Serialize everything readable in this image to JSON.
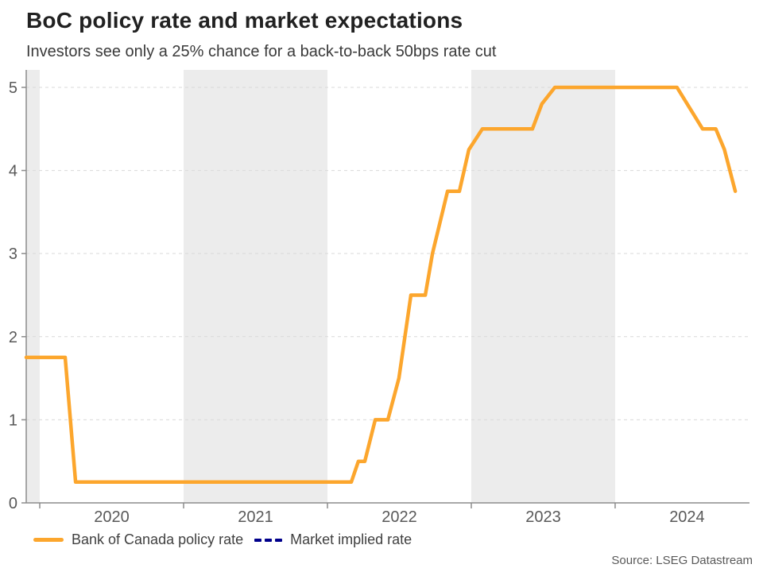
{
  "colors": {
    "band": "#ececec",
    "grid": "#d9d9d9",
    "axis": "#8c8c8c",
    "tick_text": "#595959",
    "title_text": "#212121",
    "subtitle_text": "#3a3a3a",
    "legend_text": "#404040",
    "policy_rate_orange": "#fca62d",
    "market_implied_navy": "#00008b"
  },
  "source": "Source: LSEG Datastream",
  "chart_data": {
    "type": "line",
    "title": "BoC policy rate and market expectations",
    "subtitle": "Investors see only a 25% chance for a back-to-back 50bps rate cut",
    "xlabel": "",
    "ylabel": "",
    "xlim": [
      2019.906,
      2024.934
    ],
    "ylim": [
      0,
      5.21
    ],
    "xticks": [
      2020,
      2021,
      2022,
      2023,
      2024
    ],
    "xtick_labels": [
      "2020",
      "2021",
      "2022",
      "2023",
      "2024"
    ],
    "yticks": [
      0,
      1,
      2,
      3,
      4,
      5
    ],
    "ytick_labels": [
      "0",
      "1",
      "2",
      "3",
      "4",
      "5"
    ],
    "grid": "horizontal-dashed",
    "shaded_year_bands": [
      2019,
      2021,
      2023
    ],
    "legend_position": "bottom-left",
    "series": [
      {
        "name": "Bank of Canada policy rate",
        "color": "#fca62d",
        "style": "solid",
        "points": [
          [
            2019.906,
            1.75
          ],
          [
            2020.177,
            1.75
          ],
          [
            2020.249,
            0.25
          ],
          [
            2022.166,
            0.25
          ],
          [
            2022.215,
            0.5
          ],
          [
            2022.26,
            0.5
          ],
          [
            2022.332,
            1.0
          ],
          [
            2022.42,
            1.0
          ],
          [
            2022.497,
            1.5
          ],
          [
            2022.58,
            2.5
          ],
          [
            2022.68,
            2.5
          ],
          [
            2022.73,
            3.0
          ],
          [
            2022.835,
            3.75
          ],
          [
            2022.917,
            3.75
          ],
          [
            2022.983,
            4.25
          ],
          [
            2023.077,
            4.5
          ],
          [
            2023.425,
            4.5
          ],
          [
            2023.49,
            4.8
          ],
          [
            2023.581,
            5.0
          ],
          [
            2024.43,
            5.0
          ],
          [
            2024.608,
            4.5
          ],
          [
            2024.7,
            4.5
          ],
          [
            2024.76,
            4.25
          ],
          [
            2024.835,
            3.75
          ]
        ]
      },
      {
        "name": "Market implied rate",
        "color": "#00008b",
        "style": "dashed",
        "points": []
      }
    ]
  }
}
